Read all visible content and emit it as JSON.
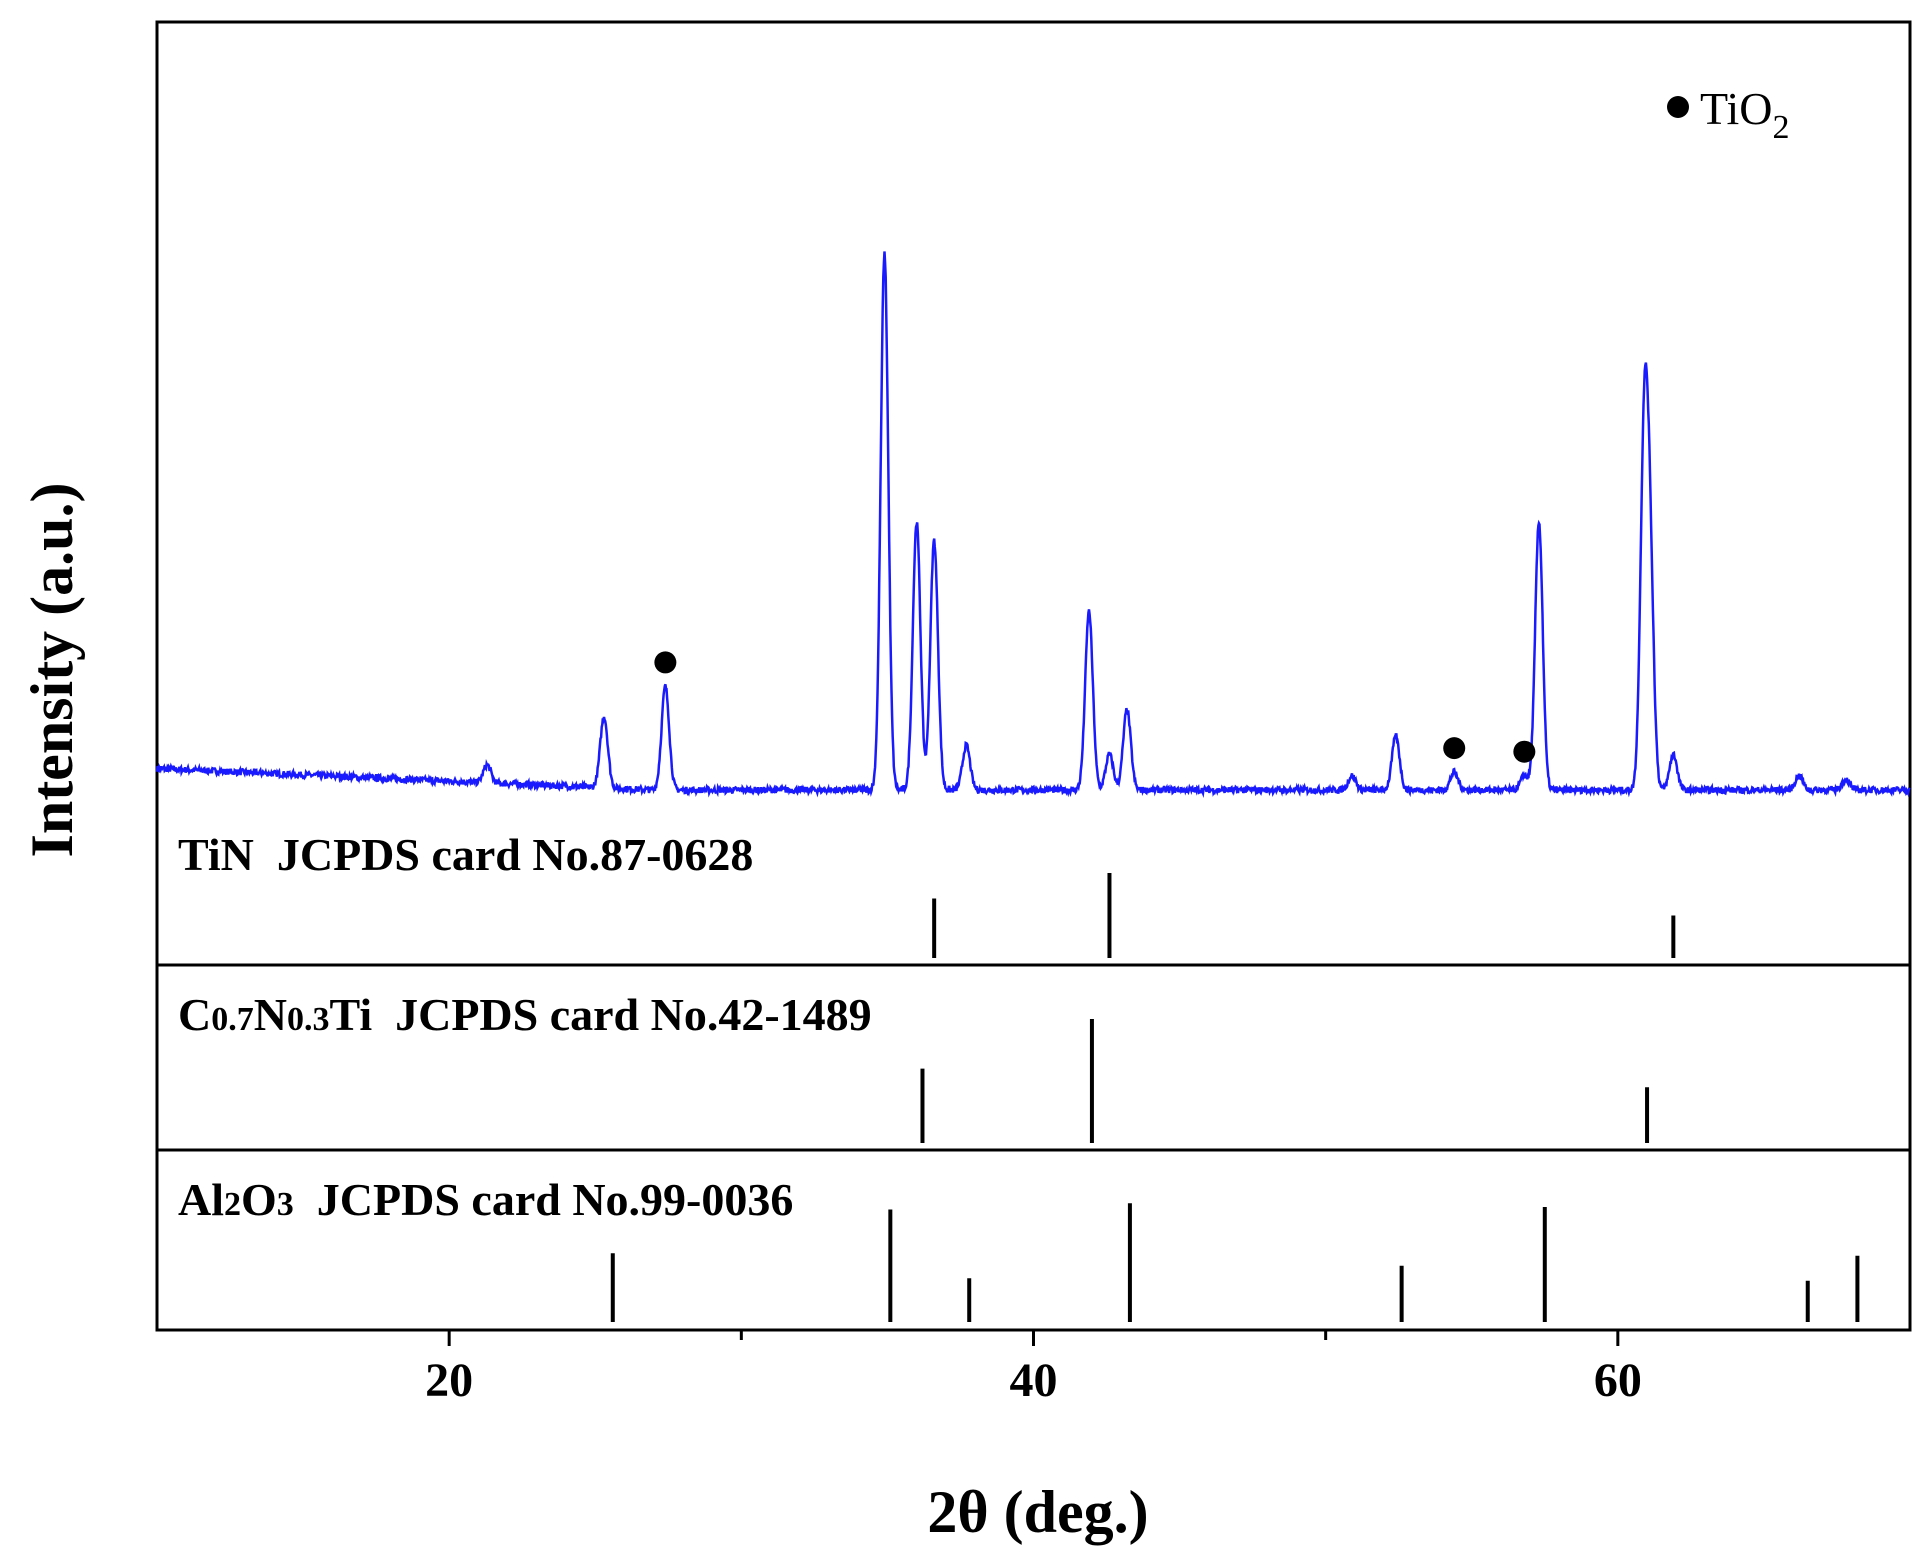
{
  "chart_data": {
    "type": "line",
    "xlabel": "2θ (deg.)",
    "ylabel": "Intensity (a.u.)",
    "xlim": [
      10,
      70
    ],
    "xticks": [
      20,
      40,
      60
    ],
    "xtick_minor": [
      30,
      50
    ],
    "legend": {
      "marker": "●",
      "text": "TiO",
      "subscript": "2",
      "position": "top-right"
    },
    "pattern": {
      "color": "#1a1aff",
      "baseline": 2.0,
      "ylim": [
        0,
        40
      ],
      "peaks": [
        {
          "x": 21.3,
          "h": 1.0
        },
        {
          "x": 25.3,
          "h": 4.0
        },
        {
          "x": 27.4,
          "h": 5.8
        },
        {
          "x": 34.9,
          "h": 30.0
        },
        {
          "x": 36.0,
          "h": 15.0
        },
        {
          "x": 36.6,
          "h": 14.0
        },
        {
          "x": 37.7,
          "h": 2.5
        },
        {
          "x": 41.9,
          "h": 10.0
        },
        {
          "x": 42.6,
          "h": 2.0
        },
        {
          "x": 43.2,
          "h": 4.5
        },
        {
          "x": 50.9,
          "h": 0.8
        },
        {
          "x": 52.4,
          "h": 3.0
        },
        {
          "x": 54.4,
          "h": 1.0
        },
        {
          "x": 56.8,
          "h": 0.8
        },
        {
          "x": 57.3,
          "h": 15.0
        },
        {
          "x": 60.9,
          "h": 19.0
        },
        {
          "x": 61.1,
          "h": 12.0
        },
        {
          "x": 61.9,
          "h": 2.0
        },
        {
          "x": 66.2,
          "h": 0.8
        },
        {
          "x": 67.8,
          "h": 0.6
        }
      ],
      "tio2_markers": [
        27.4,
        54.4,
        56.8
      ]
    },
    "references": [
      {
        "label_parts": [
          {
            "t": "TiN  JCPDS card No.87-0628",
            "small": false
          }
        ],
        "lines": [
          {
            "x": 36.6,
            "h": 0.7
          },
          {
            "x": 42.6,
            "h": 1.0
          },
          {
            "x": 61.9,
            "h": 0.5
          }
        ]
      },
      {
        "label_parts": [
          {
            "t": "C",
            "small": false
          },
          {
            "t": "0.7",
            "small": true
          },
          {
            "t": "N",
            "small": false
          },
          {
            "t": "0.3",
            "small": true
          },
          {
            "t": "Ti  JCPDS card No.42-1489",
            "small": false
          }
        ],
        "lines": [
          {
            "x": 36.2,
            "h": 0.6
          },
          {
            "x": 42.0,
            "h": 1.0
          },
          {
            "x": 61.0,
            "h": 0.45
          }
        ]
      },
      {
        "label_parts": [
          {
            "t": "Al",
            "small": false
          },
          {
            "t": "2",
            "small": true
          },
          {
            "t": "O",
            "small": false
          },
          {
            "t": "3",
            "small": true
          },
          {
            "t": "  JCPDS card No.99-0036",
            "small": false
          }
        ],
        "lines": [
          {
            "x": 25.6,
            "h": 0.55
          },
          {
            "x": 35.1,
            "h": 0.9
          },
          {
            "x": 37.8,
            "h": 0.35
          },
          {
            "x": 43.3,
            "h": 0.95
          },
          {
            "x": 52.6,
            "h": 0.45
          },
          {
            "x": 57.5,
            "h": 0.92
          },
          {
            "x": 66.5,
            "h": 0.33
          },
          {
            "x": 68.2,
            "h": 0.53
          }
        ]
      }
    ]
  }
}
